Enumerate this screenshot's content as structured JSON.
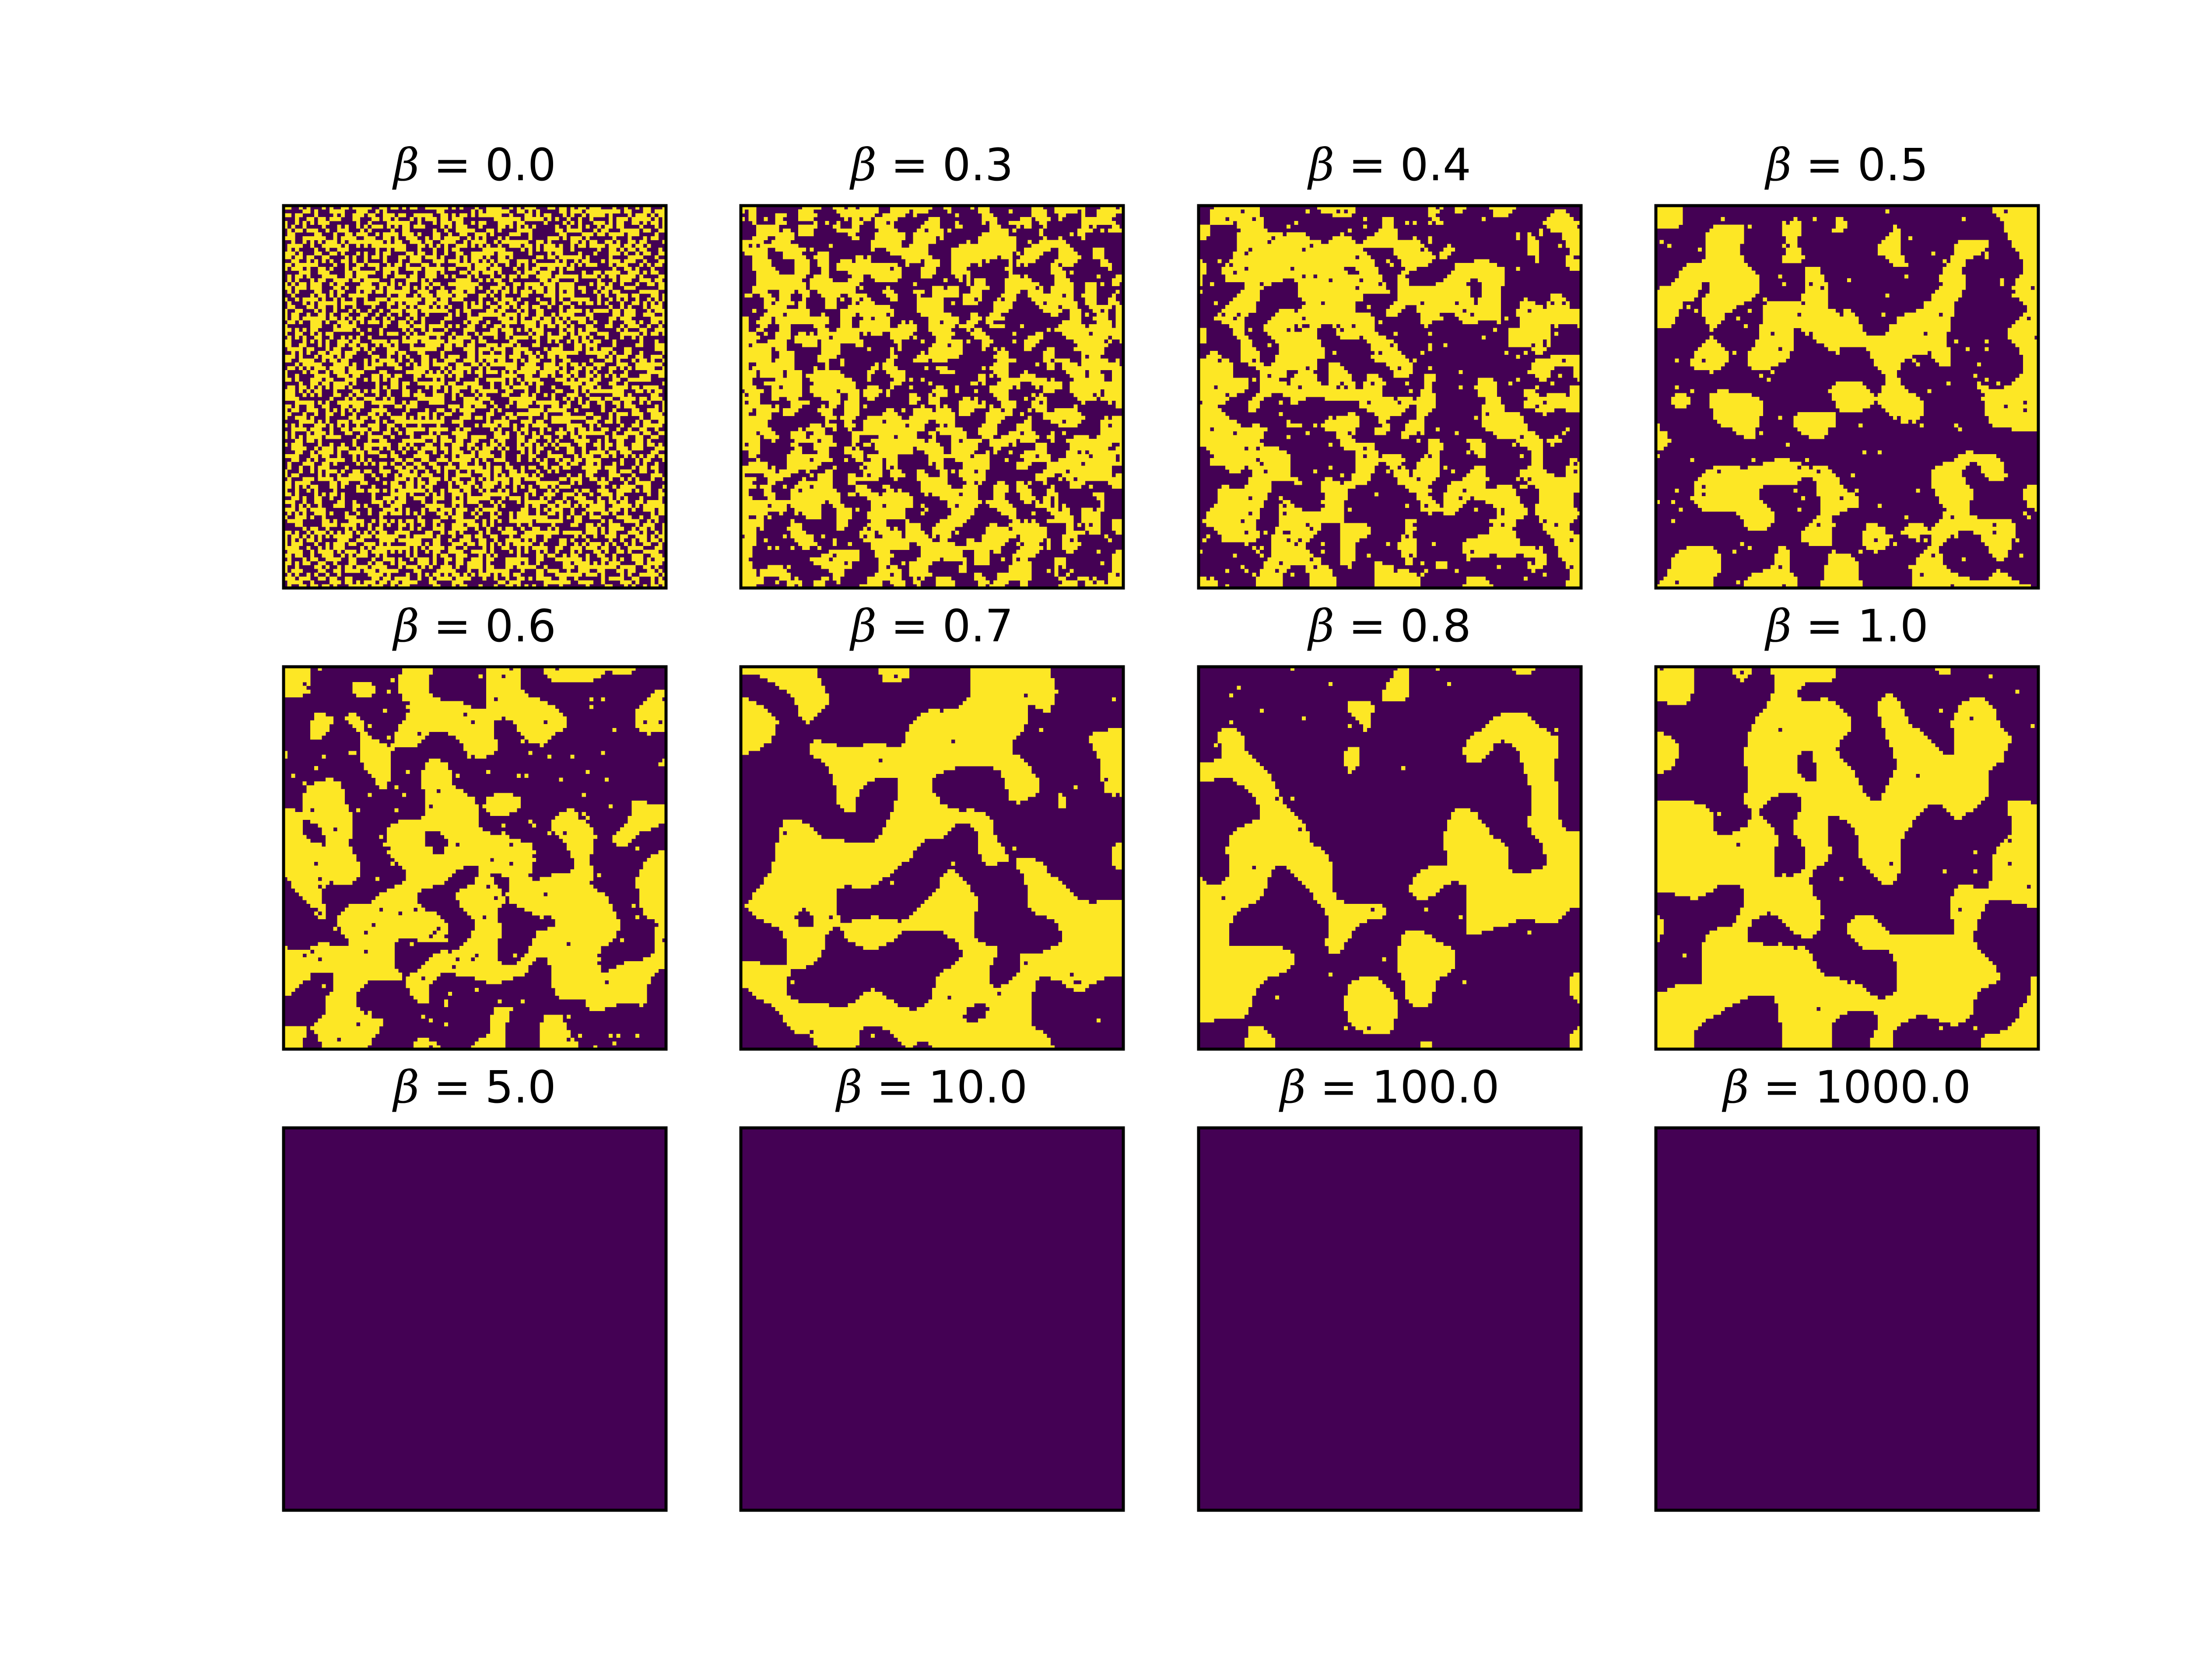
{
  "chart_data": {
    "type": "heatmap",
    "grid": {
      "rows": 3,
      "cols": 4
    },
    "colors": {
      "low": "#440154",
      "high": "#fde725",
      "frame": "#000000"
    },
    "lattice": {
      "width": 100,
      "height": 100
    },
    "axes_visible": false,
    "panels": [
      {
        "title_symbol": "β",
        "title_value": "= 0.0",
        "beta": 0.0,
        "fraction_high": 0.5,
        "pattern": "random"
      },
      {
        "title_symbol": "β",
        "title_value": "= 0.3",
        "beta": 0.3,
        "fraction_high": 0.5,
        "pattern": "fine-clusters"
      },
      {
        "title_symbol": "β",
        "title_value": "= 0.4",
        "beta": 0.4,
        "fraction_high": 0.45,
        "pattern": "medium-clusters"
      },
      {
        "title_symbol": "β",
        "title_value": "= 0.5",
        "beta": 0.5,
        "fraction_high": 0.35,
        "pattern": "large-domains"
      },
      {
        "title_symbol": "β",
        "title_value": "= 0.6",
        "beta": 0.6,
        "fraction_high": 0.45,
        "pattern": "large-domains"
      },
      {
        "title_symbol": "β",
        "title_value": "= 0.7",
        "beta": 0.7,
        "fraction_high": 0.45,
        "pattern": "smooth-domains"
      },
      {
        "title_symbol": "β",
        "title_value": "= 0.8",
        "beta": 0.8,
        "fraction_high": 0.3,
        "pattern": "smooth-domains"
      },
      {
        "title_symbol": "β",
        "title_value": "= 1.0",
        "beta": 1.0,
        "fraction_high": 0.5,
        "pattern": "smooth-domains"
      },
      {
        "title_symbol": "β",
        "title_value": "= 5.0",
        "beta": 5.0,
        "fraction_high": 0.0,
        "pattern": "uniform"
      },
      {
        "title_symbol": "β",
        "title_value": "= 10.0",
        "beta": 10.0,
        "fraction_high": 0.0,
        "pattern": "uniform"
      },
      {
        "title_symbol": "β",
        "title_value": "= 100.0",
        "beta": 100.0,
        "fraction_high": 0.0,
        "pattern": "uniform"
      },
      {
        "title_symbol": "β",
        "title_value": "= 1000.0",
        "beta": 1000.0,
        "fraction_high": 0.0,
        "pattern": "uniform"
      }
    ]
  }
}
